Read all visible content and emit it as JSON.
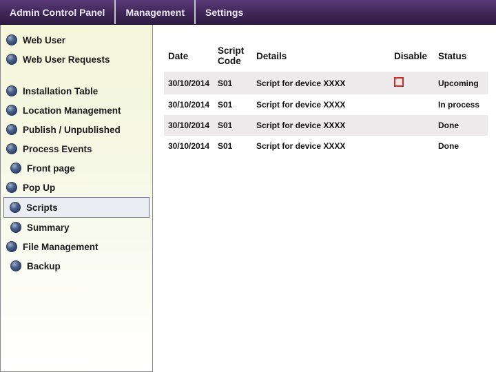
{
  "colors": {
    "topbar_gradient_top": "#5a3b7a",
    "topbar_gradient_mid": "#3f2858",
    "topbar_gradient_bot": "#2f1c42",
    "topbar_text": "#ece6f2",
    "sidebar_grad_top": "#f4f7da",
    "bullet_dark": "#22304f",
    "row_alt": "#eceaea",
    "checkbox_border": "#c0302b"
  },
  "topbar": {
    "items": [
      "Admin Control Panel",
      "Management",
      "Settings"
    ]
  },
  "sidebar": {
    "items": [
      {
        "label": "Web User",
        "gap_after": false,
        "indent": false
      },
      {
        "label": "Web User Requests",
        "gap_after": true,
        "indent": false
      },
      {
        "label": "Installation Table",
        "gap_after": false,
        "indent": false
      },
      {
        "label": "Location Management",
        "gap_after": false,
        "indent": false
      },
      {
        "label": "Publish / Unpublished",
        "gap_after": false,
        "indent": false
      },
      {
        "label": "Process Events",
        "gap_after": false,
        "indent": false
      },
      {
        "label": "Front page",
        "gap_after": false,
        "indent": true
      },
      {
        "label": "Pop Up",
        "gap_after": false,
        "indent": false
      },
      {
        "label": "Scripts",
        "gap_after": false,
        "indent": true,
        "selected": true
      },
      {
        "label": "Summary",
        "gap_after": false,
        "indent": true
      },
      {
        "label": "File Management",
        "gap_after": false,
        "indent": false
      },
      {
        "label": "Backup",
        "gap_after": false,
        "indent": true
      }
    ]
  },
  "table": {
    "columns": [
      "Date",
      "Script Code",
      "Details",
      "Disable",
      "Status"
    ],
    "rows": [
      {
        "date": "30/10/2014",
        "code": "S01",
        "details": "Script for device XXXX",
        "disable_checkbox": true,
        "status": "Upcoming"
      },
      {
        "date": "30/10/2014",
        "code": "S01",
        "details": "Script for device XXXX",
        "disable_checkbox": false,
        "status": "In process"
      },
      {
        "date": "30/10/2014",
        "code": "S01",
        "details": "Script for device XXXX",
        "disable_checkbox": false,
        "status": "Done"
      },
      {
        "date": "30/10/2014",
        "code": "S01",
        "details": "Script for device XXXX",
        "disable_checkbox": false,
        "status": "Done"
      }
    ]
  }
}
